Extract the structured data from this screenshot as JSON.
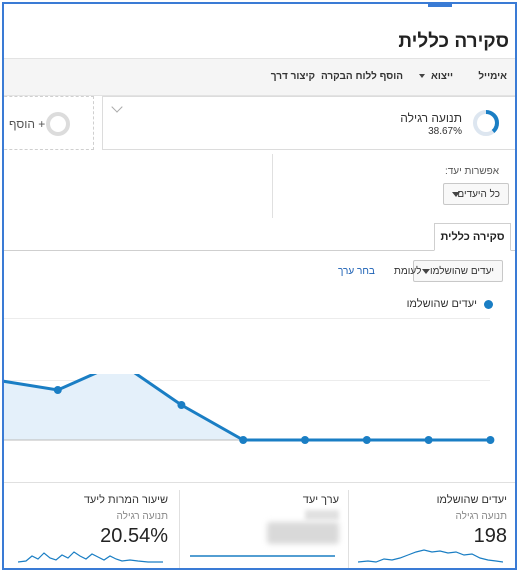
{
  "page": {
    "title": "סקירה כללית"
  },
  "toolbar": {
    "email": "אימייל",
    "export": "ייצוא",
    "add_dashboard": "הוסף ללוח הבקרה",
    "shortcut": "קיצור דרך"
  },
  "segments": {
    "active": {
      "label": "תנועה רגילה",
      "percent": "38.67%",
      "fraction": 0.3867
    },
    "add_label": "+ הוסף"
  },
  "goal_option": {
    "label": "אפשרות יעד:",
    "selected": "כל היעדים"
  },
  "tabs": [
    {
      "label": "סקירה כללית"
    }
  ],
  "controls": {
    "metric_selected": "יעדים שהושלמו",
    "versus": "לעומת",
    "choose_value": "בחר ערך"
  },
  "legend": {
    "series_name": "יעדים שהושלמו"
  },
  "colors": {
    "accent": "#1a7ec4",
    "link": "#1a5fb4",
    "frame": "#3a7bd5"
  },
  "chart_data": {
    "type": "area",
    "series": [
      {
        "name": "יעדים שהושלמו",
        "values": [
          24,
          20,
          31,
          14,
          0,
          0,
          0,
          0,
          0
        ]
      }
    ]
  },
  "metrics": [
    {
      "title": "יעדים שהושלמו",
      "subtitle": "תנועה רגילה",
      "value": "198"
    },
    {
      "title": "ערך יעד"
    },
    {
      "title": "שיעור המרות ליעד",
      "subtitle": "תנועה רגילה",
      "value": "20.54%"
    }
  ]
}
